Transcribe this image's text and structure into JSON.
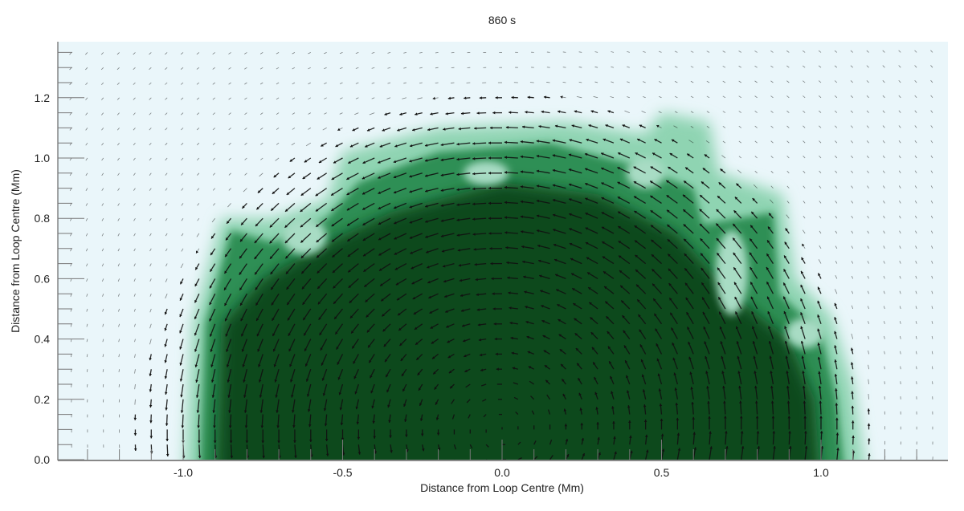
{
  "chart_data": {
    "type": "heatmap",
    "overlay": "vector-field",
    "title": "860 s",
    "xlabel": "Distance from Loop Centre (Mm)",
    "ylabel": "Distance from Loop Centre (Mm)",
    "xlim": [
      -1.4,
      1.4
    ],
    "ylim": [
      0.0,
      1.39
    ],
    "xticks": [
      "-1.0",
      "-0.5",
      "0.0",
      "0.5",
      "1.0"
    ],
    "yticks": [
      "0.0",
      "0.2",
      "0.4",
      "0.6",
      "0.8",
      "1.0",
      "1.2"
    ],
    "grid": false,
    "colors": {
      "background": "#eaf6fa",
      "low_density": "#8fd4b2",
      "mid_density": "#2f8f55",
      "high_density": "#0b4a1c",
      "arrows": "#111111"
    }
  }
}
